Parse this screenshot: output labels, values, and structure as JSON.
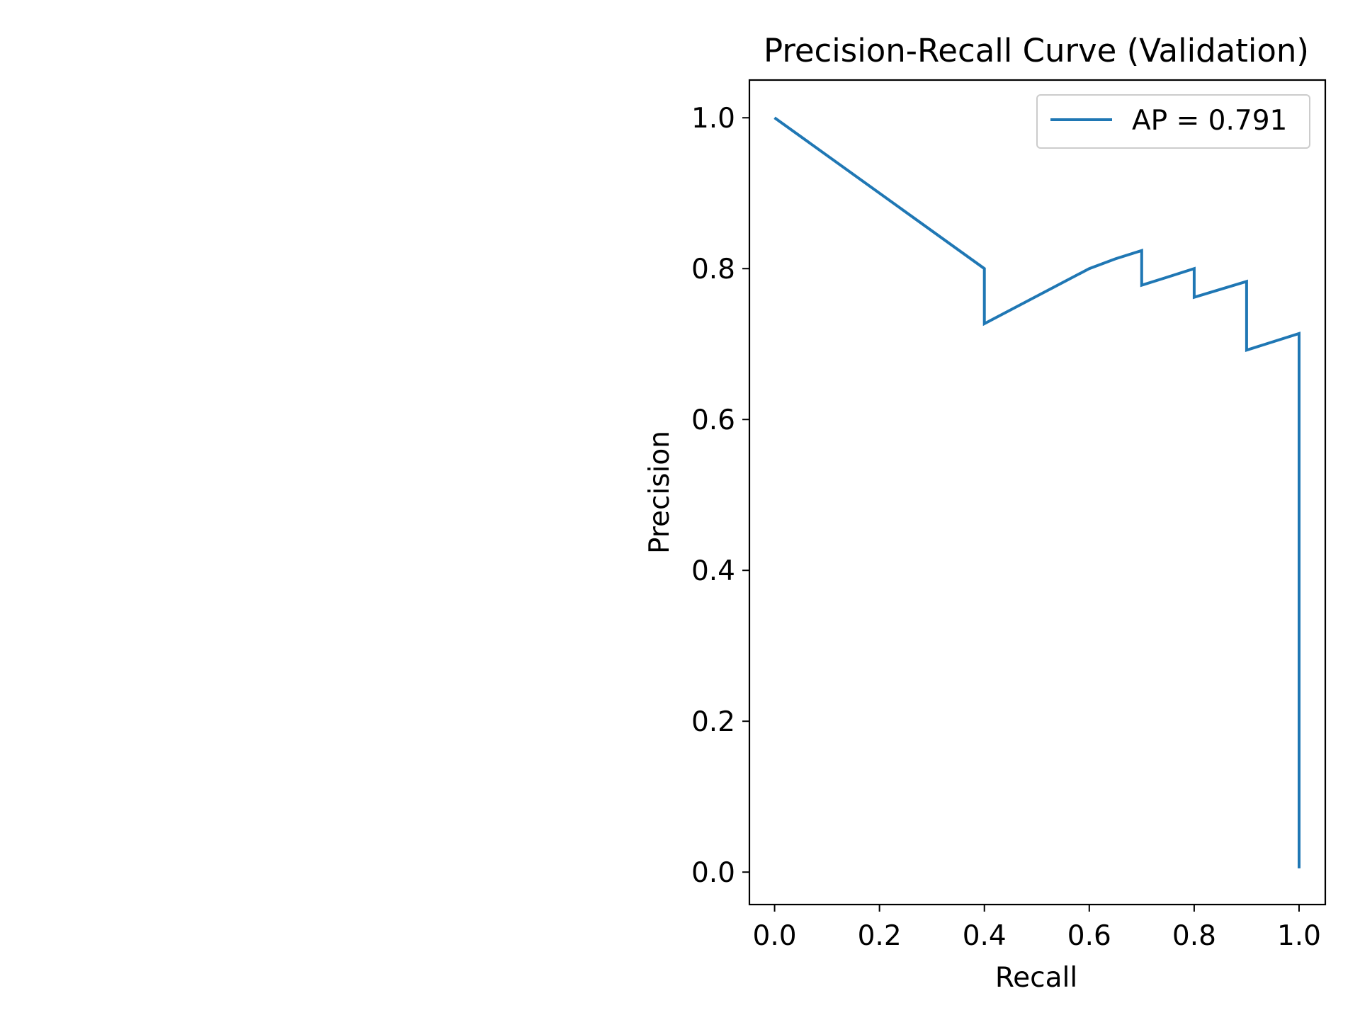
{
  "chart_data": {
    "type": "line",
    "title": "Precision-Recall Curve (Validation)",
    "xlabel": "Recall",
    "ylabel": "Precision",
    "xlim": [
      -0.048,
      1.05
    ],
    "ylim": [
      -0.043,
      1.05
    ],
    "xticks": [
      "0.0",
      "0.2",
      "0.4",
      "0.6",
      "0.8",
      "1.0"
    ],
    "yticks": [
      "0.0",
      "0.2",
      "0.4",
      "0.6",
      "0.8",
      "1.0"
    ],
    "grid": false,
    "legend_position": "top-right",
    "series": [
      {
        "name": "AP = 0.791",
        "color": "#1f77b4",
        "x": [
          0.0,
          0.4,
          0.4,
          0.6,
          0.65,
          0.7,
          0.7,
          0.75,
          0.8,
          0.8,
          0.9,
          0.9,
          1.0,
          1.0
        ],
        "y": [
          1.0,
          0.8,
          0.727,
          0.8,
          0.813,
          0.824,
          0.778,
          0.789,
          0.8,
          0.762,
          0.783,
          0.692,
          0.714,
          0.005
        ]
      }
    ]
  }
}
